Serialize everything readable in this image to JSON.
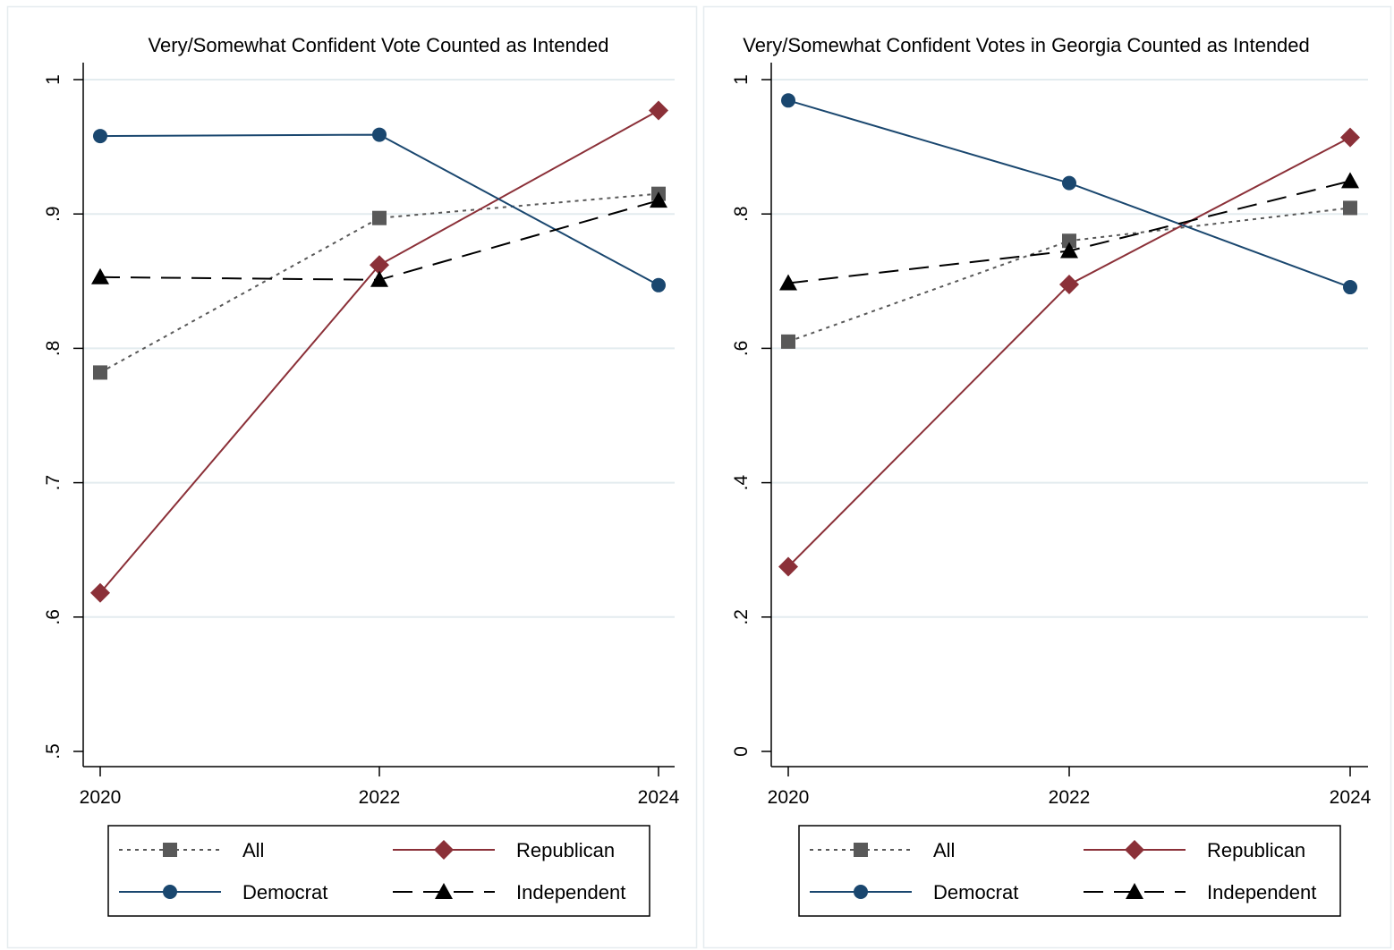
{
  "colors": {
    "All": "#595959",
    "Republican": "#8b3038",
    "Democrat": "#1a476f",
    "Independent": "#000000",
    "grid": "#e3ecef",
    "border": "#e6ecef"
  },
  "chart_data": [
    {
      "type": "line",
      "title": "Very/Somewhat Confident Vote Counted as Intended",
      "xlabel": "",
      "ylabel": "",
      "x": [
        2020,
        2022,
        2024
      ],
      "x_tick_labels": [
        "2020",
        "2022",
        "2024"
      ],
      "ylim": [
        0.5,
        1.0
      ],
      "y_ticks": [
        0.5,
        0.6,
        0.7,
        0.8,
        0.9,
        1.0
      ],
      "y_tick_labels": [
        ".5",
        ".6",
        ".7",
        ".8",
        ".9",
        "1"
      ],
      "grid": true,
      "legend_position": "bottom",
      "series": [
        {
          "name": "All",
          "marker": "square",
          "line": "dotted",
          "values": [
            0.782,
            0.897,
            0.915
          ]
        },
        {
          "name": "Republican",
          "marker": "diamond",
          "line": "solid",
          "values": [
            0.618,
            0.862,
            0.977
          ]
        },
        {
          "name": "Democrat",
          "marker": "circle",
          "line": "solid",
          "values": [
            0.958,
            0.959,
            0.847
          ]
        },
        {
          "name": "Independent",
          "marker": "triangle",
          "line": "dashed",
          "values": [
            0.853,
            0.851,
            0.91
          ]
        }
      ]
    },
    {
      "type": "line",
      "title": "Very/Somewhat Confident Votes in Georgia Counted as Intended",
      "xlabel": "",
      "ylabel": "",
      "x": [
        2020,
        2022,
        2024
      ],
      "x_tick_labels": [
        "2020",
        "2022",
        "2024"
      ],
      "ylim": [
        0.0,
        1.0
      ],
      "y_ticks": [
        0.0,
        0.2,
        0.4,
        0.6,
        0.8,
        1.0
      ],
      "y_tick_labels": [
        "0",
        ".2",
        ".4",
        ".6",
        ".8",
        "1"
      ],
      "grid": true,
      "legend_position": "bottom",
      "series": [
        {
          "name": "All",
          "marker": "square",
          "line": "dotted",
          "values": [
            0.61,
            0.76,
            0.809
          ]
        },
        {
          "name": "Republican",
          "marker": "diamond",
          "line": "solid",
          "values": [
            0.275,
            0.695,
            0.914
          ]
        },
        {
          "name": "Democrat",
          "marker": "circle",
          "line": "solid",
          "values": [
            0.969,
            0.846,
            0.691
          ]
        },
        {
          "name": "Independent",
          "marker": "triangle",
          "line": "dashed",
          "values": [
            0.697,
            0.745,
            0.849
          ]
        }
      ]
    }
  ]
}
